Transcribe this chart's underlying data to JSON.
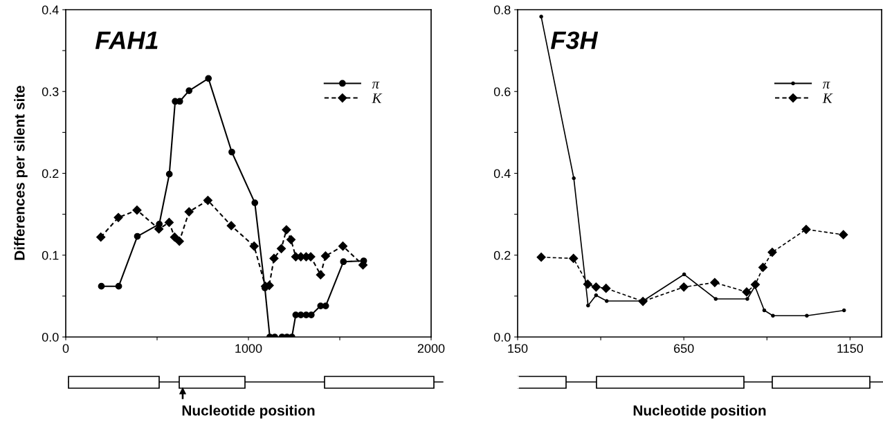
{
  "chart_data": [
    {
      "type": "line",
      "title": "FAH1",
      "xlabel": "Nucleotide position",
      "ylabel": "Differences per silent site",
      "xlim": [
        0,
        2000
      ],
      "ylim": [
        0,
        0.4
      ],
      "xticks": [
        0,
        {
          "value": 500,
          "label": null
        },
        1000,
        {
          "value": 1500,
          "label": null
        },
        2000
      ],
      "yticks": [
        {
          "value": 0,
          "label": "0.0"
        },
        {
          "value": 0.05,
          "label": null
        },
        0.1,
        {
          "value": 0.15,
          "label": null
        },
        0.2,
        {
          "value": 0.25,
          "label": null
        },
        0.3,
        {
          "value": 0.35,
          "label": null
        },
        0.4
      ],
      "legend": "top right",
      "grid": false,
      "series": [
        {
          "name": "π",
          "color": "#000000",
          "line_style": "solid",
          "marker": "circle",
          "x": [
            195,
            290,
            392,
            512,
            567,
            599,
            624,
            675,
            781,
            909,
            1035,
            1090,
            1117,
            1144,
            1184,
            1211,
            1238,
            1259,
            1287,
            1316,
            1344,
            1395,
            1423,
            1520,
            1631
          ],
          "values": [
            0.062,
            0.062,
            0.123,
            0.138,
            0.199,
            0.288,
            0.288,
            0.301,
            0.316,
            0.226,
            0.164,
            0.06,
            0.0,
            0.0,
            0.0,
            0.0,
            0.0,
            0.027,
            0.027,
            0.027,
            0.027,
            0.038,
            0.038,
            0.092,
            0.093
          ]
        },
        {
          "name": "K",
          "color": "#000000",
          "line_style": "dashed",
          "marker": "diamond",
          "x": [
            192,
            288,
            390,
            510,
            566,
            596,
            622,
            675,
            778,
            906,
            1031,
            1093,
            1114,
            1140,
            1180,
            1208,
            1233,
            1259,
            1287,
            1316,
            1341,
            1395,
            1422,
            1517,
            1627
          ],
          "values": [
            0.122,
            0.146,
            0.155,
            0.132,
            0.14,
            0.122,
            0.117,
            0.153,
            0.167,
            0.136,
            0.111,
            0.062,
            0.063,
            0.096,
            0.108,
            0.131,
            0.119,
            0.098,
            0.098,
            0.098,
            0.098,
            0.076,
            0.099,
            0.111,
            0.088
          ]
        }
      ]
    },
    {
      "type": "line",
      "title": "F3H",
      "xlabel": "Nucleotide position",
      "xlim": [
        150,
        1245
      ],
      "ylim": [
        0,
        0.8
      ],
      "xticks": [
        150,
        {
          "value": 400,
          "label": null
        },
        650,
        {
          "value": 900,
          "label": null
        },
        1150
      ],
      "yticks": [
        {
          "value": 0,
          "label": "0.0"
        },
        {
          "value": 0.1,
          "label": null
        },
        0.2,
        {
          "value": 0.3,
          "label": null
        },
        0.4,
        {
          "value": 0.5,
          "label": null
        },
        0.6,
        {
          "value": 0.7,
          "label": null
        },
        0.8
      ],
      "legend": "top right",
      "grid": false,
      "series": [
        {
          "name": "π",
          "color": "#000000",
          "line_style": "solid",
          "marker": "circle",
          "x": [
            221,
            319,
            362,
            386,
            418,
            527,
            651,
            746,
            841,
            864,
            892,
            918,
            1020,
            1132
          ],
          "values": [
            0.783,
            0.388,
            0.077,
            0.102,
            0.088,
            0.088,
            0.153,
            0.093,
            0.093,
            0.124,
            0.065,
            0.052,
            0.052,
            0.065
          ]
        },
        {
          "name": "K",
          "color": "#000000",
          "line_style": "dashed",
          "marker": "diamond",
          "x": [
            221,
            318,
            361,
            386,
            416,
            527,
            650,
            743,
            839,
            865,
            888,
            916,
            1018,
            1130
          ],
          "values": [
            0.195,
            0.192,
            0.129,
            0.122,
            0.119,
            0.087,
            0.122,
            0.133,
            0.11,
            0.128,
            0.17,
            0.207,
            0.263,
            0.25
          ]
        }
      ]
    }
  ]
}
